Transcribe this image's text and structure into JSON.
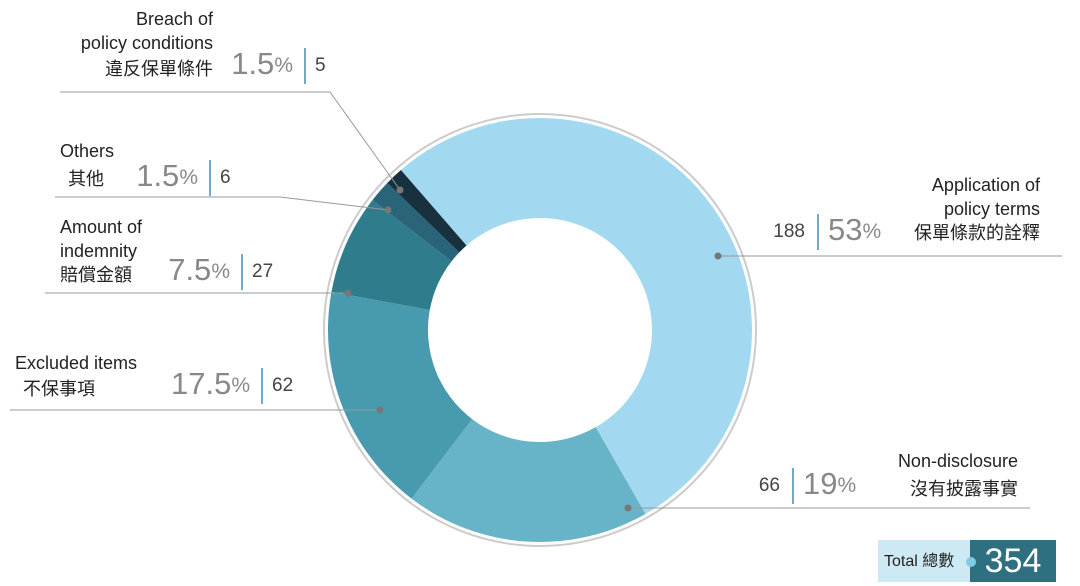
{
  "chart_data": {
    "type": "donut",
    "categories": [
      {
        "en_lines": [
          "Application of",
          "policy terms"
        ],
        "zh": "保單條款的詮釋"
      },
      {
        "en_lines": [
          "Non-disclosure"
        ],
        "zh": "沒有披露事實"
      },
      {
        "en_lines": [
          "Excluded items"
        ],
        "zh": "不保事項"
      },
      {
        "en_lines": [
          "Amount of",
          "indemnity"
        ],
        "zh": "賠償金額"
      },
      {
        "en_lines": [
          "Others"
        ],
        "zh": "其他"
      },
      {
        "en_lines": [
          "Breach of",
          "policy conditions"
        ],
        "zh": "違反保單條件"
      }
    ],
    "values": [
      188,
      66,
      62,
      27,
      6,
      5
    ],
    "percents": [
      53,
      19,
      17.5,
      7.5,
      1.5,
      1.5
    ],
    "percent_symbol": "%",
    "colors": [
      "#a2d9f0",
      "#67b4c8",
      "#489bae",
      "#2f7c8c",
      "#2a6479",
      "#18313f"
    ],
    "total_label": "Total 總數",
    "total": 354
  }
}
